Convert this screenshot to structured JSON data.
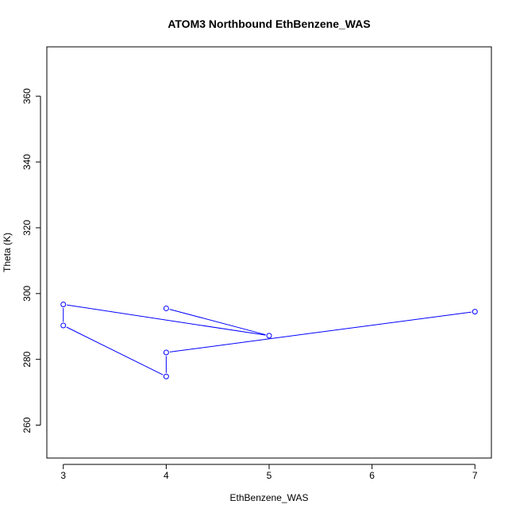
{
  "chart_data": {
    "type": "line",
    "title": "ATOM3 Northbound EthBenzene_WAS",
    "xlabel": "EthBenzene_WAS",
    "ylabel": "Theta (K)",
    "xlim": [
      2.84,
      7.16
    ],
    "ylim": [
      250,
      375
    ],
    "xticks": [
      3,
      4,
      5,
      6,
      7
    ],
    "yticks": [
      260,
      280,
      300,
      320,
      340,
      360
    ],
    "grid": false,
    "color": "#0000ff",
    "marker": "open-circle",
    "series": [
      {
        "x": [
          4,
          5,
          3,
          3,
          4,
          4,
          7
        ],
        "y": [
          295.5,
          287.2,
          296.7,
          290.3,
          274.8,
          282.1,
          294.5
        ]
      }
    ]
  }
}
